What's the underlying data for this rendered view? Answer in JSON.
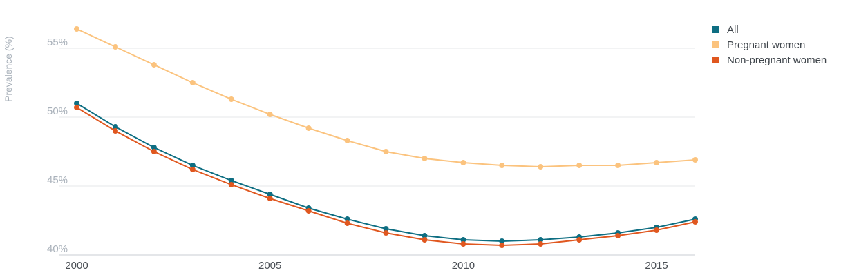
{
  "chart_data": {
    "type": "line",
    "title": "",
    "xlabel": "",
    "ylabel": "Prevalence (%)",
    "x": [
      2000,
      2001,
      2002,
      2003,
      2004,
      2005,
      2006,
      2007,
      2008,
      2009,
      2010,
      2011,
      2012,
      2013,
      2014,
      2015,
      2016
    ],
    "xlim": [
      2000,
      2016
    ],
    "ylim": [
      40,
      57.5
    ],
    "x_ticks": [
      "2000",
      "2005",
      "2010",
      "2015"
    ],
    "y_ticks": [
      "40%",
      "45%",
      "50%",
      "55%"
    ],
    "grid": true,
    "legend_position": "top-right",
    "series": [
      {
        "name": "All",
        "color": "#0e6e82",
        "values": [
          51.0,
          49.3,
          47.8,
          46.5,
          45.4,
          44.4,
          43.4,
          42.6,
          41.9,
          41.4,
          41.1,
          41.0,
          41.1,
          41.3,
          41.6,
          42.0,
          42.6
        ]
      },
      {
        "name": "Pregnant women",
        "color": "#fbc37e",
        "values": [
          56.4,
          55.1,
          53.8,
          52.5,
          51.3,
          50.2,
          49.2,
          48.3,
          47.5,
          47.0,
          46.7,
          46.5,
          46.4,
          46.5,
          46.5,
          46.7,
          46.9
        ]
      },
      {
        "name": "Non-pregnant women",
        "color": "#e0571f",
        "values": [
          50.7,
          49.0,
          47.5,
          46.2,
          45.1,
          44.1,
          43.2,
          42.3,
          41.6,
          41.1,
          40.8,
          40.7,
          40.8,
          41.1,
          41.4,
          41.8,
          42.4
        ]
      }
    ]
  }
}
